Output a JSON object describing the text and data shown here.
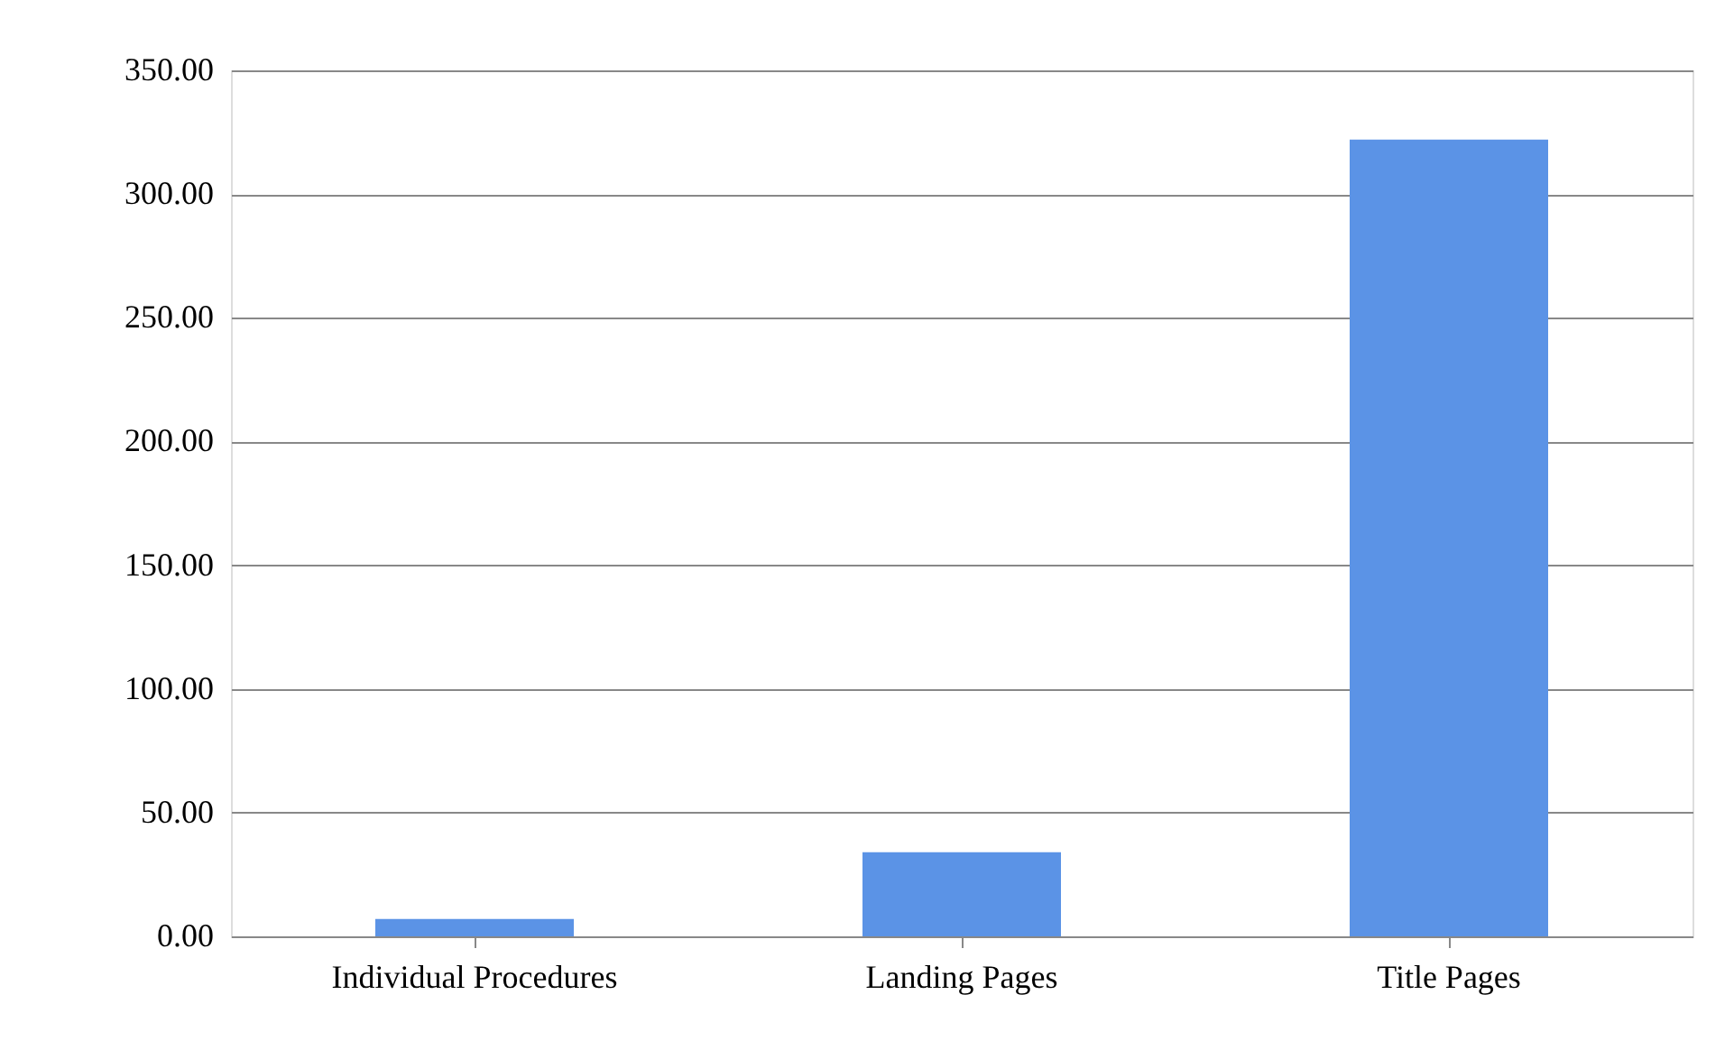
{
  "chart_data": {
    "type": "bar",
    "categories": [
      "Individual Procedures",
      "Landing Pages",
      "Title Pages"
    ],
    "values": [
      7,
      34,
      322
    ],
    "color": "#5b93e6",
    "ylim": [
      0,
      350
    ],
    "yticks": [
      {
        "value": 0,
        "label": "0.00"
      },
      {
        "value": 50,
        "label": "50.00"
      },
      {
        "value": 100,
        "label": "100.00"
      },
      {
        "value": 150,
        "label": "150.00"
      },
      {
        "value": 200,
        "label": "200.00"
      },
      {
        "value": 250,
        "label": "250.00"
      },
      {
        "value": 300,
        "label": "300.00"
      },
      {
        "value": 350,
        "label": "350.00"
      }
    ],
    "grid": "y"
  }
}
